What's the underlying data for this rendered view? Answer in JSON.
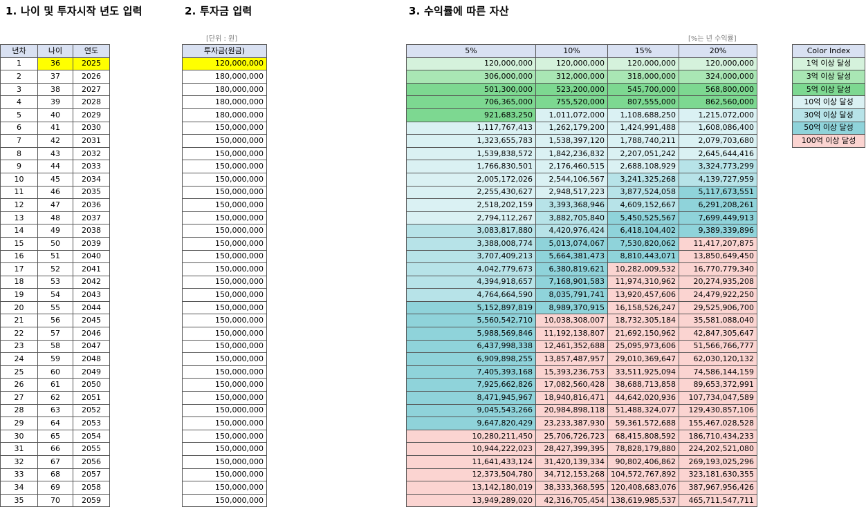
{
  "sections": {
    "s1": "1. 나이 및 투자시작 년도 입력",
    "s2": "2. 투자금 입력",
    "s3": "3. 수익률에 따른 자산"
  },
  "notes": {
    "unit": "[단위 : 원]",
    "rate": "[%는 년 수익률]"
  },
  "table1": {
    "headers": [
      "년차",
      "나이",
      "연도"
    ],
    "start_age": 36,
    "start_year": 2025,
    "highlight_color": "#ffff00"
  },
  "table2": {
    "header": "투자금(원금)",
    "values": [
      "120,000,000",
      "180,000,000",
      "180,000,000",
      "180,000,000",
      "180,000,000",
      "150,000,000",
      "150,000,000",
      "150,000,000",
      "150,000,000",
      "150,000,000",
      "150,000,000",
      "150,000,000",
      "150,000,000",
      "150,000,000",
      "150,000,000",
      "150,000,000",
      "150,000,000",
      "150,000,000",
      "150,000,000",
      "150,000,000",
      "150,000,000",
      "150,000,000",
      "150,000,000",
      "150,000,000",
      "150,000,000",
      "150,000,000",
      "150,000,000",
      "150,000,000",
      "150,000,000",
      "150,000,000",
      "150,000,000",
      "150,000,000",
      "150,000,000",
      "150,000,000",
      "150,000,000"
    ]
  },
  "table3": {
    "headers": [
      "5%",
      "10%",
      "15%",
      "20%"
    ],
    "rows": [
      [
        "120,000,000",
        "120,000,000",
        "120,000,000",
        "120,000,000"
      ],
      [
        "306,000,000",
        "312,000,000",
        "318,000,000",
        "324,000,000"
      ],
      [
        "501,300,000",
        "523,200,000",
        "545,700,000",
        "568,800,000"
      ],
      [
        "706,365,000",
        "755,520,000",
        "807,555,000",
        "862,560,000"
      ],
      [
        "921,683,250",
        "1,011,072,000",
        "1,108,688,250",
        "1,215,072,000"
      ],
      [
        "1,117,767,413",
        "1,262,179,200",
        "1,424,991,488",
        "1,608,086,400"
      ],
      [
        "1,323,655,783",
        "1,538,397,120",
        "1,788,740,211",
        "2,079,703,680"
      ],
      [
        "1,539,838,572",
        "1,842,236,832",
        "2,207,051,242",
        "2,645,644,416"
      ],
      [
        "1,766,830,501",
        "2,176,460,515",
        "2,688,108,929",
        "3,324,773,299"
      ],
      [
        "2,005,172,026",
        "2,544,106,567",
        "3,241,325,268",
        "4,139,727,959"
      ],
      [
        "2,255,430,627",
        "2,948,517,223",
        "3,877,524,058",
        "5,117,673,551"
      ],
      [
        "2,518,202,159",
        "3,393,368,946",
        "4,609,152,667",
        "6,291,208,261"
      ],
      [
        "2,794,112,267",
        "3,882,705,840",
        "5,450,525,567",
        "7,699,449,913"
      ],
      [
        "3,083,817,880",
        "4,420,976,424",
        "6,418,104,402",
        "9,389,339,896"
      ],
      [
        "3,388,008,774",
        "5,013,074,067",
        "7,530,820,062",
        "11,417,207,875"
      ],
      [
        "3,707,409,213",
        "5,664,381,473",
        "8,810,443,071",
        "13,850,649,450"
      ],
      [
        "4,042,779,673",
        "6,380,819,621",
        "10,282,009,532",
        "16,770,779,340"
      ],
      [
        "4,394,918,657",
        "7,168,901,583",
        "11,974,310,962",
        "20,274,935,208"
      ],
      [
        "4,764,664,590",
        "8,035,791,741",
        "13,920,457,606",
        "24,479,922,250"
      ],
      [
        "5,152,897,819",
        "8,989,370,915",
        "16,158,526,247",
        "29,525,906,700"
      ],
      [
        "5,560,542,710",
        "10,038,308,007",
        "18,732,305,184",
        "35,581,088,040"
      ],
      [
        "5,988,569,846",
        "11,192,138,807",
        "21,692,150,962",
        "42,847,305,647"
      ],
      [
        "6,437,998,338",
        "12,461,352,688",
        "25,095,973,606",
        "51,566,766,777"
      ],
      [
        "6,909,898,255",
        "13,857,487,957",
        "29,010,369,647",
        "62,030,120,132"
      ],
      [
        "7,405,393,168",
        "15,393,236,753",
        "33,511,925,094",
        "74,586,144,159"
      ],
      [
        "7,925,662,826",
        "17,082,560,428",
        "38,688,713,858",
        "89,653,372,991"
      ],
      [
        "8,471,945,967",
        "18,940,816,471",
        "44,642,020,936",
        "107,734,047,589"
      ],
      [
        "9,045,543,266",
        "20,984,898,118",
        "51,488,324,077",
        "129,430,857,106"
      ],
      [
        "9,647,820,429",
        "23,233,387,930",
        "59,361,572,688",
        "155,467,028,528"
      ],
      [
        "10,280,211,450",
        "25,706,726,723",
        "68,415,808,592",
        "186,710,434,233"
      ],
      [
        "10,944,222,023",
        "28,427,399,395",
        "78,828,179,880",
        "224,202,521,080"
      ],
      [
        "11,641,433,124",
        "31,420,139,334",
        "90,802,406,862",
        "269,193,025,296"
      ],
      [
        "12,373,504,780",
        "34,712,153,268",
        "104,572,767,892",
        "323,181,630,355"
      ],
      [
        "13,142,180,019",
        "38,333,368,595",
        "120,408,683,076",
        "387,967,956,426"
      ],
      [
        "13,949,289,020",
        "42,316,705,454",
        "138,619,985,537",
        "465,711,547,711"
      ]
    ]
  },
  "legend": {
    "header": "Color Index",
    "items": [
      {
        "label": "1억 이상 달성",
        "color": "#d5f2dc"
      },
      {
        "label": "3억 이상 달성",
        "color": "#a9e6b4"
      },
      {
        "label": "5억 이상 달성",
        "color": "#7dd891"
      },
      {
        "label": "10억 이상 달성",
        "color": "#daf1f3"
      },
      {
        "label": "30억 이상 달성",
        "color": "#b7e3e8"
      },
      {
        "label": "50억 이상 달성",
        "color": "#8fd3da"
      },
      {
        "label": "100억 이상 달성",
        "color": "#fbd4d1"
      }
    ]
  }
}
